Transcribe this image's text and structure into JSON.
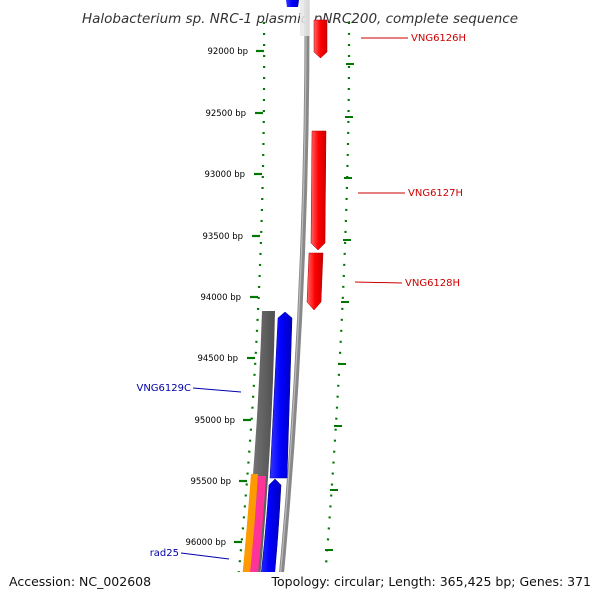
{
  "title": "Halobacterium sp. NRC-1 plasmid pNRC200, complete sequence",
  "footer": {
    "accession": "Accession: NC_002608",
    "summary": "Topology: circular; Length: 365,425 bp; Genes: 371"
  },
  "colors": {
    "forward_gene": "#ff0000",
    "reverse_gene": "#0000ff",
    "gray_track": "#707070",
    "orange_track": "#ff9900",
    "pink_track": "#ff3399",
    "tick": "#006600",
    "label_forward": "#cc0000",
    "label_reverse": "#0000aa"
  },
  "scale_ticks": [
    {
      "bp": 92000,
      "label": "92000 bp"
    },
    {
      "bp": 92500,
      "label": "92500 bp"
    },
    {
      "bp": 93000,
      "label": "93000 bp"
    },
    {
      "bp": 93500,
      "label": "93500 bp"
    },
    {
      "bp": 94000,
      "label": "94000 bp"
    },
    {
      "bp": 94500,
      "label": "94500 bp"
    },
    {
      "bp": 95000,
      "label": "95000 bp"
    },
    {
      "bp": 95500,
      "label": "95500 bp"
    },
    {
      "bp": 96000,
      "label": "96000 bp"
    }
  ],
  "genes": [
    {
      "name": "VNG6126H",
      "strand": "forward"
    },
    {
      "name": "VNG6127H",
      "strand": "forward"
    },
    {
      "name": "VNG6128H",
      "strand": "forward"
    },
    {
      "name": "VNG6129C",
      "strand": "reverse"
    },
    {
      "name": "rad25",
      "strand": "reverse"
    }
  ]
}
